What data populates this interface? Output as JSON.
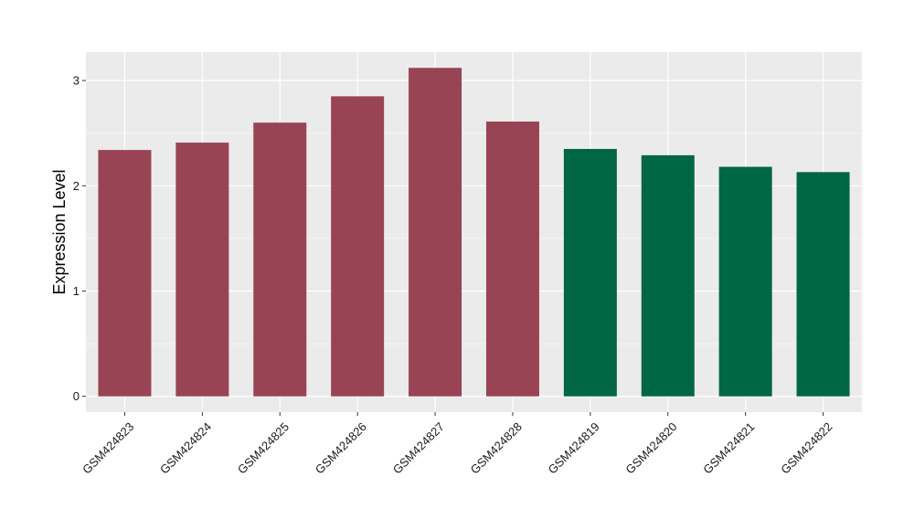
{
  "chart_data": {
    "type": "bar",
    "title": "",
    "xlabel": "",
    "ylabel": "Expression Level",
    "categories": [
      "GSM424823",
      "GSM424824",
      "GSM424825",
      "GSM424826",
      "GSM424827",
      "GSM424828",
      "GSM424819",
      "GSM424820",
      "GSM424821",
      "GSM424822"
    ],
    "values": [
      2.34,
      2.41,
      2.6,
      2.85,
      3.12,
      2.61,
      2.35,
      2.29,
      2.18,
      2.13
    ],
    "bar_colors": [
      "#994455",
      "#994455",
      "#994455",
      "#994455",
      "#994455",
      "#994455",
      "#006644",
      "#006644",
      "#006644",
      "#006644"
    ],
    "ylim": [
      -0.15,
      3.27
    ],
    "yticks": [
      0,
      1,
      2,
      3
    ],
    "grid": true,
    "legend": "none",
    "colors": {
      "panel_background": "#ebebeb",
      "grid_major": "#ffffff",
      "grid_minor": "#f5f5f5"
    }
  }
}
